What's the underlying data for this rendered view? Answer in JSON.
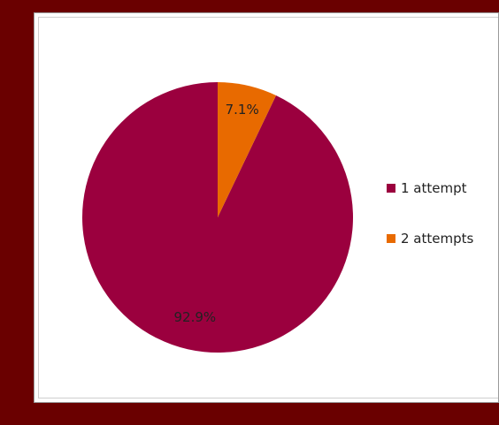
{
  "chart_data": {
    "type": "pie",
    "categories": [
      "1 attempt",
      "2 attempts"
    ],
    "values": [
      92.9,
      7.1
    ],
    "labels": [
      "92.9%",
      "7.1%"
    ],
    "colors": [
      "#9b003e",
      "#e86a00"
    ],
    "legend_position": "right",
    "start_angle": "top",
    "direction": "counterclockwise-from-first-slice"
  }
}
